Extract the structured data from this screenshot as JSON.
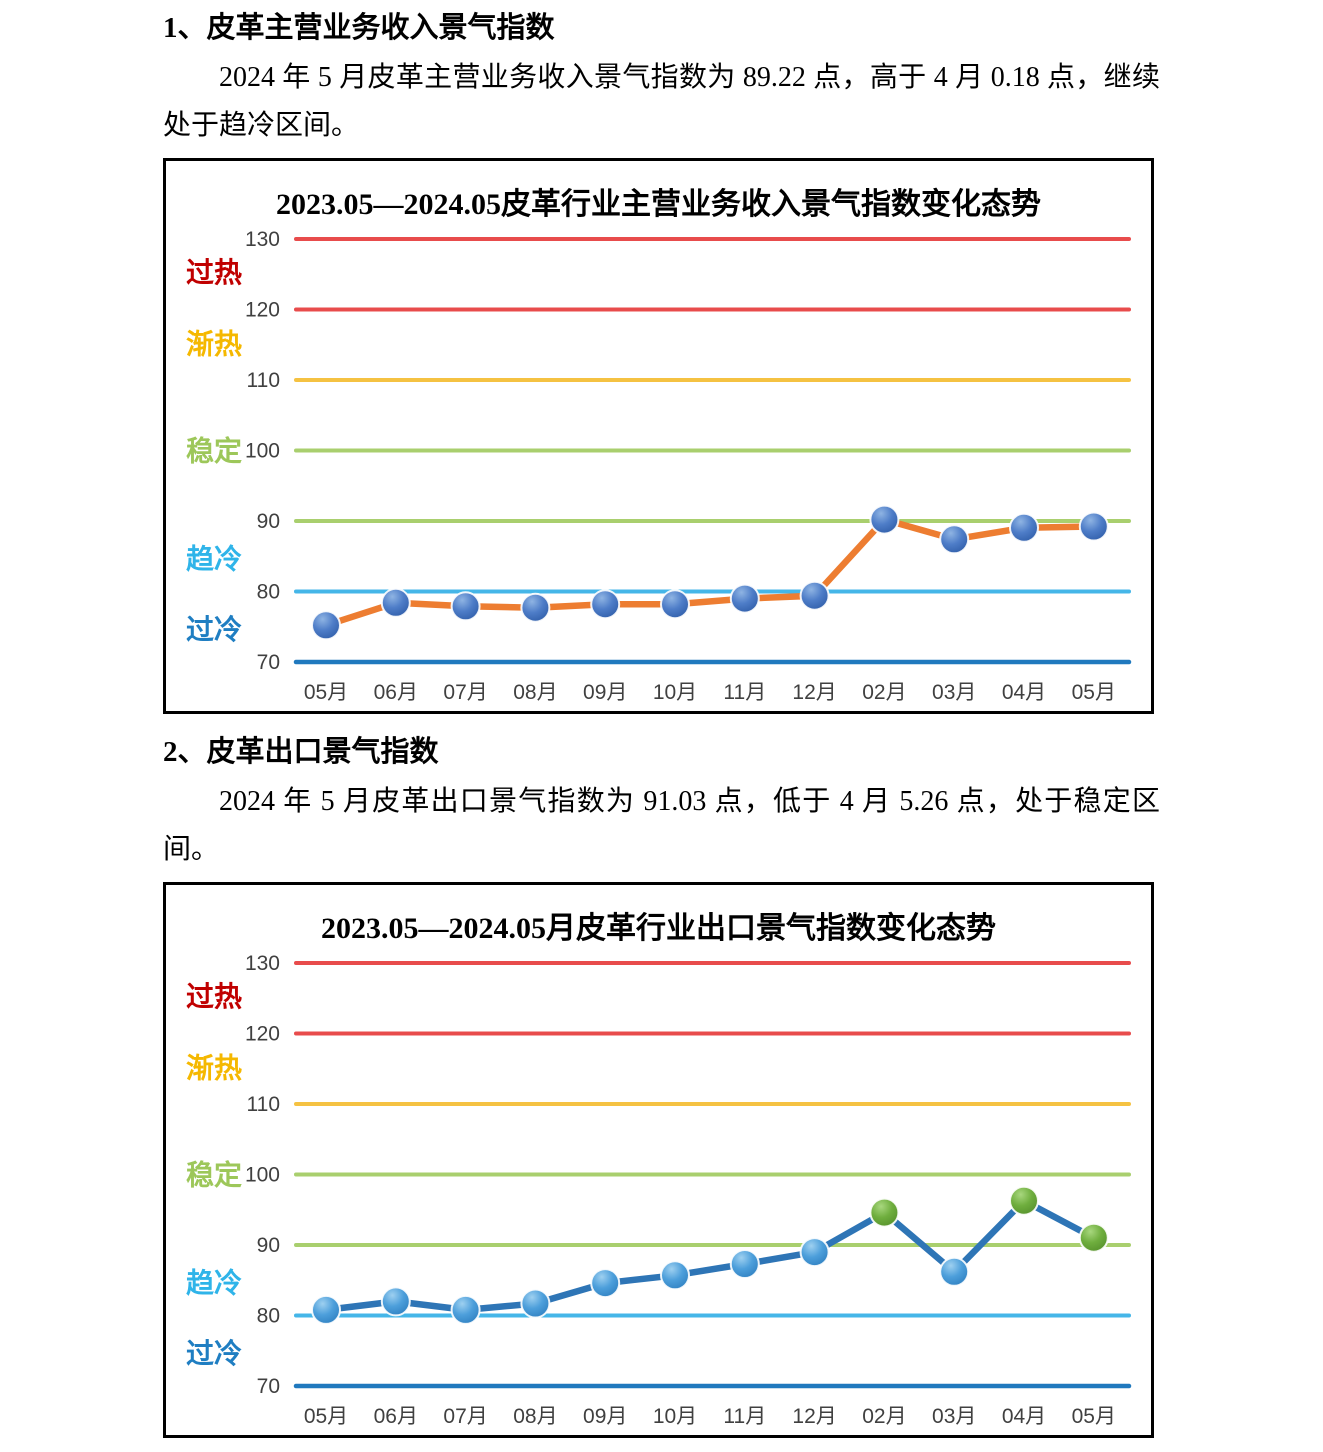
{
  "page": {
    "background": "#ffffff"
  },
  "sections": [
    {
      "heading": "1、皮革主营业务收入景气指数",
      "paragraph": "2024 年 5 月皮革主营业务收入景气指数为 89.22 点，高于 4 月 0.18 点，继续处于趋冷区间。"
    },
    {
      "heading": "2、皮革出口景气指数",
      "paragraph": "2024 年 5 月皮革出口景气指数为 91.03 点，低于 4 月 5.26 点，处于稳定区间。"
    }
  ],
  "colors": {
    "marker_gradients": {
      "blue": [
        "#8FB4E3",
        "#4E7DC8",
        "#2F5DA8"
      ],
      "light_blue": [
        "#9ED0F0",
        "#4D9FDB",
        "#2E7FC0"
      ],
      "green": [
        "#A8D77E",
        "#6FAE3E",
        "#55902B"
      ]
    },
    "tick_text": "#404040",
    "chart_border": "#000000"
  },
  "chart_data": [
    {
      "type": "line",
      "title": "2023.05—2024.05皮革行业主营业务收入景气指数变化态势",
      "categories": [
        "05月",
        "06月",
        "07月",
        "08月",
        "09月",
        "10月",
        "11月",
        "12月",
        "02月",
        "03月",
        "04月",
        "05月"
      ],
      "series": [
        {
          "values": [
            75.2,
            78.4,
            77.9,
            77.7,
            78.2,
            78.2,
            79.0,
            79.4,
            90.2,
            87.4,
            89.04,
            89.22
          ],
          "line_color": "#ED7D31",
          "marker_colors": [
            "blue",
            "blue",
            "blue",
            "blue",
            "blue",
            "blue",
            "blue",
            "blue",
            "blue",
            "blue",
            "blue",
            "blue"
          ]
        }
      ],
      "ylim": [
        70,
        130
      ],
      "yticks": [
        130,
        120,
        110,
        100,
        90,
        80,
        70
      ],
      "gridlines": [
        {
          "value": 130,
          "color": "#E84C4C"
        },
        {
          "value": 120,
          "color": "#E84C4C"
        },
        {
          "value": 110,
          "color": "#F5C242"
        },
        {
          "value": 100,
          "color": "#A9CF6E"
        },
        {
          "value": 90,
          "color": "#A9CF6E"
        },
        {
          "value": 80,
          "color": "#45B6E8"
        },
        {
          "value": 70,
          "color": "#2079BE"
        }
      ],
      "zones": [
        {
          "label": "过热",
          "color": "#C00000",
          "at": 125.3
        },
        {
          "label": "渐热",
          "color": "#F5B800",
          "at": 115.2
        },
        {
          "label": "稳定",
          "color": "#9DC75A",
          "at": 100
        },
        {
          "label": "趋冷",
          "color": "#2FB4E9",
          "at": 84.7
        },
        {
          "label": "过冷",
          "color": "#1F7EC2",
          "at": 74.7
        }
      ],
      "legend": "none",
      "grid": "horizontal"
    },
    {
      "type": "line",
      "title": "2023.05—2024.05月皮革行业出口景气指数变化态势",
      "categories": [
        "05月",
        "06月",
        "07月",
        "08月",
        "09月",
        "10月",
        "11月",
        "12月",
        "02月",
        "03月",
        "04月",
        "05月"
      ],
      "series": [
        {
          "values": [
            80.8,
            82.0,
            80.8,
            81.7,
            84.6,
            85.7,
            87.3,
            89.0,
            94.6,
            86.2,
            96.29,
            91.03
          ],
          "line_color": "#2E75B6",
          "marker_colors": [
            "light_blue",
            "light_blue",
            "light_blue",
            "light_blue",
            "light_blue",
            "light_blue",
            "light_blue",
            "light_blue",
            "green",
            "light_blue",
            "green",
            "green"
          ]
        }
      ],
      "ylim": [
        70,
        130
      ],
      "yticks": [
        130,
        120,
        110,
        100,
        90,
        80,
        70
      ],
      "gridlines": [
        {
          "value": 130,
          "color": "#E84C4C"
        },
        {
          "value": 120,
          "color": "#E84C4C"
        },
        {
          "value": 110,
          "color": "#F5C242"
        },
        {
          "value": 100,
          "color": "#A9CF6E"
        },
        {
          "value": 90,
          "color": "#A9CF6E"
        },
        {
          "value": 80,
          "color": "#45B6E8"
        },
        {
          "value": 70,
          "color": "#2079BE"
        }
      ],
      "zones": [
        {
          "label": "过热",
          "color": "#C00000",
          "at": 125.3
        },
        {
          "label": "渐热",
          "color": "#F5B800",
          "at": 115.2
        },
        {
          "label": "稳定",
          "color": "#9DC75A",
          "at": 100
        },
        {
          "label": "趋冷",
          "color": "#2FB4E9",
          "at": 84.7
        },
        {
          "label": "过冷",
          "color": "#1F7EC2",
          "at": 74.7
        }
      ],
      "legend": "none",
      "grid": "horizontal"
    }
  ]
}
